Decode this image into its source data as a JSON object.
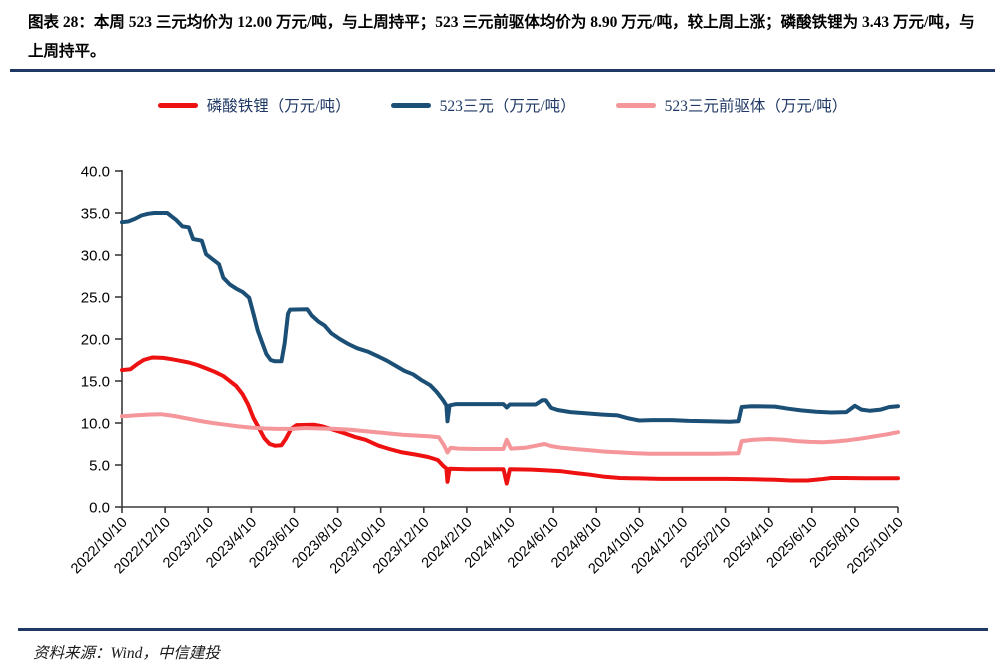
{
  "header": {
    "title": "图表 28：本周 523 三元均价为 12.00 万元/吨，与上周持平；523 三元前驱体均价为 8.90 万元/吨，较上周上涨；磷酸铁锂为 3.43 万元/吨，与上周持平。"
  },
  "legend": {
    "items": [
      {
        "label": "磷酸铁锂（万元/吨）",
        "color": "#ee1111"
      },
      {
        "label": "523三元（万元/吨）",
        "color": "#1c4f76"
      },
      {
        "label": "523三元前驱体（万元/吨）",
        "color": "#f4969a"
      }
    ]
  },
  "chart_data": {
    "type": "line",
    "title": "",
    "xlabel": "",
    "ylabel": "万元/吨",
    "grid": false,
    "legend_position": "top",
    "x_axis": {
      "unit": "months since 2022/10/10",
      "range": [
        0,
        36
      ],
      "tick_positions_months": [
        0,
        2,
        4,
        6,
        8,
        10,
        12,
        14,
        16,
        18,
        20,
        22,
        24,
        26,
        28,
        30,
        32,
        34,
        36
      ],
      "tick_labels": [
        "2022/10/10",
        "2022/12/10",
        "2023/2/10",
        "2023/4/10",
        "2023/6/10",
        "2023/8/10",
        "2023/10/10",
        "2023/12/10",
        "2024/2/10",
        "2024/4/10",
        "2024/6/10",
        "2024/8/10",
        "2024/10/10",
        "2024/12/10",
        "2025/2/10",
        "2025/4/10",
        "2025/6/10",
        "2025/8/10",
        "2025/10/10"
      ],
      "label_rotation_deg": -45
    },
    "y_axis": {
      "range": [
        0,
        40
      ],
      "tick_step": 5,
      "tick_labels": [
        "0.0",
        "5.0",
        "10.0",
        "15.0",
        "20.0",
        "25.0",
        "30.0",
        "35.0",
        "40.0"
      ]
    },
    "series": [
      {
        "key": "lfp",
        "name": "磷酸铁锂（万元/吨）",
        "color": "#ee1111",
        "latest_value": 3.43,
        "points": [
          [
            0,
            16.3
          ],
          [
            0.4,
            16.4
          ],
          [
            0.7,
            17.0
          ],
          [
            1.0,
            17.5
          ],
          [
            1.4,
            17.8
          ],
          [
            1.9,
            17.75
          ],
          [
            2.3,
            17.6
          ],
          [
            2.7,
            17.4
          ],
          [
            3.1,
            17.2
          ],
          [
            3.5,
            16.9
          ],
          [
            3.9,
            16.5
          ],
          [
            4.3,
            16.1
          ],
          [
            4.7,
            15.6
          ],
          [
            5.0,
            15.0
          ],
          [
            5.3,
            14.4
          ],
          [
            5.6,
            13.4
          ],
          [
            5.85,
            12.2
          ],
          [
            6.1,
            10.6
          ],
          [
            6.35,
            9.4
          ],
          [
            6.6,
            8.2
          ],
          [
            6.85,
            7.5
          ],
          [
            7.1,
            7.3
          ],
          [
            7.4,
            7.35
          ],
          [
            7.6,
            8.1
          ],
          [
            7.85,
            9.3
          ],
          [
            8.1,
            9.75
          ],
          [
            8.9,
            9.8
          ],
          [
            9.3,
            9.6
          ],
          [
            9.8,
            9.2
          ],
          [
            10.3,
            8.8
          ],
          [
            10.8,
            8.35
          ],
          [
            11.3,
            8.0
          ],
          [
            11.9,
            7.3
          ],
          [
            12.4,
            6.9
          ],
          [
            13.0,
            6.5
          ],
          [
            13.6,
            6.25
          ],
          [
            14.2,
            5.95
          ],
          [
            14.65,
            5.6
          ],
          [
            14.9,
            4.9
          ],
          [
            15.05,
            4.6
          ],
          [
            15.1,
            3.0
          ],
          [
            15.2,
            4.55
          ],
          [
            16.0,
            4.5
          ],
          [
            17.7,
            4.5
          ],
          [
            17.85,
            2.8
          ],
          [
            18.0,
            4.5
          ],
          [
            19.0,
            4.45
          ],
          [
            19.8,
            4.35
          ],
          [
            20.4,
            4.25
          ],
          [
            21.0,
            4.05
          ],
          [
            21.7,
            3.85
          ],
          [
            22.4,
            3.6
          ],
          [
            23.1,
            3.45
          ],
          [
            24.0,
            3.4
          ],
          [
            25.0,
            3.35
          ],
          [
            26.5,
            3.35
          ],
          [
            28.0,
            3.35
          ],
          [
            29.3,
            3.3
          ],
          [
            30.3,
            3.25
          ],
          [
            31.0,
            3.15
          ],
          [
            31.8,
            3.15
          ],
          [
            32.4,
            3.3
          ],
          [
            32.9,
            3.45
          ],
          [
            33.5,
            3.45
          ],
          [
            34.5,
            3.43
          ],
          [
            36,
            3.43
          ]
        ]
      },
      {
        "key": "ncm523",
        "name": "523三元（万元/吨）",
        "color": "#1c4f76",
        "latest_value": 12.0,
        "points": [
          [
            0,
            33.9
          ],
          [
            0.3,
            34.0
          ],
          [
            0.6,
            34.3
          ],
          [
            0.9,
            34.7
          ],
          [
            1.2,
            34.9
          ],
          [
            1.5,
            35.0
          ],
          [
            2.1,
            35.0
          ],
          [
            2.3,
            34.6
          ],
          [
            2.5,
            34.2
          ],
          [
            2.8,
            33.4
          ],
          [
            3.1,
            33.3
          ],
          [
            3.3,
            31.9
          ],
          [
            3.7,
            31.7
          ],
          [
            3.9,
            30.1
          ],
          [
            4.2,
            29.5
          ],
          [
            4.5,
            28.9
          ],
          [
            4.7,
            27.3
          ],
          [
            5.0,
            26.5
          ],
          [
            5.3,
            26.0
          ],
          [
            5.6,
            25.6
          ],
          [
            5.9,
            24.9
          ],
          [
            6.1,
            23.0
          ],
          [
            6.3,
            21.0
          ],
          [
            6.5,
            19.6
          ],
          [
            6.7,
            18.2
          ],
          [
            6.9,
            17.5
          ],
          [
            7.1,
            17.35
          ],
          [
            7.4,
            17.35
          ],
          [
            7.55,
            19.5
          ],
          [
            7.7,
            23.0
          ],
          [
            7.8,
            23.5
          ],
          [
            8.6,
            23.55
          ],
          [
            8.8,
            22.8
          ],
          [
            9.1,
            22.1
          ],
          [
            9.4,
            21.6
          ],
          [
            9.7,
            20.7
          ],
          [
            10.1,
            20.0
          ],
          [
            10.5,
            19.4
          ],
          [
            10.9,
            18.9
          ],
          [
            11.4,
            18.5
          ],
          [
            11.9,
            17.9
          ],
          [
            12.3,
            17.4
          ],
          [
            12.7,
            16.8
          ],
          [
            13.1,
            16.2
          ],
          [
            13.5,
            15.8
          ],
          [
            13.9,
            15.1
          ],
          [
            14.3,
            14.5
          ],
          [
            14.6,
            13.7
          ],
          [
            14.9,
            12.7
          ],
          [
            15.05,
            12.1
          ],
          [
            15.1,
            10.2
          ],
          [
            15.2,
            12.1
          ],
          [
            15.5,
            12.25
          ],
          [
            17.7,
            12.25
          ],
          [
            17.85,
            11.85
          ],
          [
            18.0,
            12.2
          ],
          [
            19.2,
            12.2
          ],
          [
            19.5,
            12.7
          ],
          [
            19.65,
            12.7
          ],
          [
            19.9,
            11.8
          ],
          [
            20.2,
            11.55
          ],
          [
            20.8,
            11.3
          ],
          [
            21.5,
            11.15
          ],
          [
            22.3,
            11.0
          ],
          [
            23.0,
            10.9
          ],
          [
            23.5,
            10.55
          ],
          [
            24.0,
            10.3
          ],
          [
            24.6,
            10.35
          ],
          [
            25.5,
            10.35
          ],
          [
            26.3,
            10.25
          ],
          [
            27.2,
            10.2
          ],
          [
            28.2,
            10.15
          ],
          [
            28.6,
            10.2
          ],
          [
            28.75,
            11.9
          ],
          [
            29.2,
            12.0
          ],
          [
            30.3,
            11.95
          ],
          [
            30.9,
            11.7
          ],
          [
            31.5,
            11.5
          ],
          [
            32.2,
            11.35
          ],
          [
            32.9,
            11.25
          ],
          [
            33.6,
            11.3
          ],
          [
            34.0,
            12.05
          ],
          [
            34.3,
            11.6
          ],
          [
            34.7,
            11.45
          ],
          [
            35.2,
            11.6
          ],
          [
            35.6,
            11.9
          ],
          [
            36,
            12.0
          ]
        ]
      },
      {
        "key": "precursor523",
        "name": "523三元前驱体（万元/吨）",
        "color": "#f4969a",
        "latest_value": 8.9,
        "points": [
          [
            0,
            10.8
          ],
          [
            0.6,
            10.9
          ],
          [
            1.2,
            11.0
          ],
          [
            1.8,
            11.05
          ],
          [
            2.4,
            10.85
          ],
          [
            3.0,
            10.55
          ],
          [
            3.6,
            10.25
          ],
          [
            4.2,
            10.0
          ],
          [
            4.8,
            9.8
          ],
          [
            5.4,
            9.6
          ],
          [
            6.0,
            9.45
          ],
          [
            6.6,
            9.35
          ],
          [
            7.2,
            9.3
          ],
          [
            7.9,
            9.3
          ],
          [
            8.5,
            9.4
          ],
          [
            9.2,
            9.35
          ],
          [
            9.9,
            9.3
          ],
          [
            10.6,
            9.2
          ],
          [
            11.2,
            9.05
          ],
          [
            11.8,
            8.9
          ],
          [
            12.4,
            8.75
          ],
          [
            13.0,
            8.6
          ],
          [
            13.7,
            8.5
          ],
          [
            14.3,
            8.4
          ],
          [
            14.7,
            8.3
          ],
          [
            14.95,
            7.3
          ],
          [
            15.1,
            6.5
          ],
          [
            15.25,
            7.05
          ],
          [
            15.6,
            6.95
          ],
          [
            16.5,
            6.9
          ],
          [
            17.7,
            6.9
          ],
          [
            17.85,
            8.0
          ],
          [
            18.05,
            6.95
          ],
          [
            18.7,
            7.05
          ],
          [
            19.3,
            7.35
          ],
          [
            19.6,
            7.5
          ],
          [
            19.9,
            7.25
          ],
          [
            20.4,
            7.05
          ],
          [
            21.0,
            6.9
          ],
          [
            21.7,
            6.75
          ],
          [
            22.4,
            6.6
          ],
          [
            23.1,
            6.5
          ],
          [
            23.8,
            6.4
          ],
          [
            24.5,
            6.35
          ],
          [
            26.0,
            6.35
          ],
          [
            27.5,
            6.35
          ],
          [
            28.6,
            6.4
          ],
          [
            28.75,
            7.85
          ],
          [
            29.3,
            8.0
          ],
          [
            30.0,
            8.1
          ],
          [
            30.7,
            8.0
          ],
          [
            31.3,
            7.85
          ],
          [
            31.9,
            7.75
          ],
          [
            32.5,
            7.7
          ],
          [
            33.1,
            7.8
          ],
          [
            33.7,
            7.95
          ],
          [
            34.3,
            8.15
          ],
          [
            34.9,
            8.4
          ],
          [
            35.5,
            8.65
          ],
          [
            36,
            8.9
          ]
        ]
      }
    ]
  },
  "source": {
    "text": "资料来源：Wind，中信建投"
  },
  "colors": {
    "rule": "#1f3864",
    "axis": "#3a3a3a",
    "tick_label": "#000000",
    "background": "#ffffff"
  }
}
